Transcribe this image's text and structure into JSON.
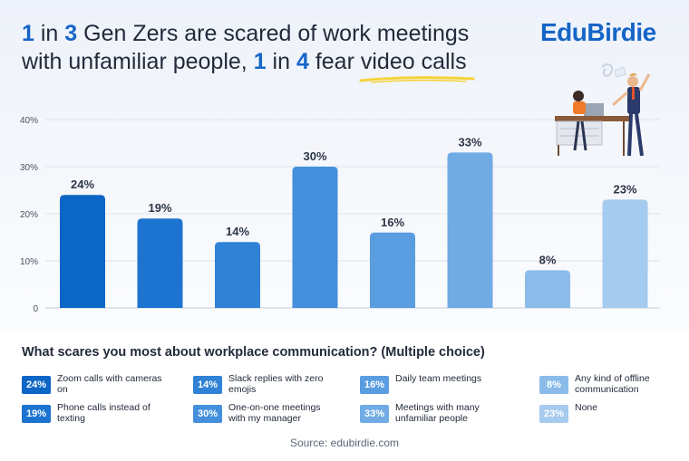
{
  "header": {
    "title_parts": [
      "1",
      " in ",
      "3",
      " Gen Zers are scared of work meetings",
      "with unfamiliar people, ",
      "1",
      " in ",
      "4",
      " fear ",
      "video calls"
    ],
    "brand": "EduBirdie"
  },
  "colors": {
    "accent": "#1565c8",
    "highlight": "#f5d33a",
    "series": [
      "#0b66c6",
      "#1c74d0",
      "#2f82d6",
      "#4590dc",
      "#5a9de0",
      "#70abe4",
      "#8bbce9",
      "#a5cbee"
    ]
  },
  "chart_data": {
    "type": "bar",
    "categories": [
      "Zoom calls with cameras on",
      "Phone calls instead of texting",
      "Slack replies with zero emojis",
      "One-on-one meetings with my manager",
      "Daily team meetings",
      "Meetings with many unfamiliar people",
      "Any kind of offline communication",
      "None"
    ],
    "values": [
      24,
      19,
      14,
      30,
      16,
      33,
      8,
      23
    ],
    "value_labels": [
      "24%",
      "19%",
      "14%",
      "30%",
      "16%",
      "33%",
      "8%",
      "23%"
    ],
    "y_ticks": [
      "0",
      "10%",
      "20%",
      "30%",
      "40%"
    ],
    "ylim": [
      0,
      40
    ],
    "grid": true,
    "title": "",
    "xlabel": "",
    "ylabel": ""
  },
  "legend": {
    "question": "What scares you most about workplace communication? (Multiple choice)",
    "items": [
      {
        "pct": "24%",
        "label": "Zoom calls with cameras on"
      },
      {
        "pct": "19%",
        "label": "Phone calls instead of texting"
      },
      {
        "pct": "14%",
        "label": "Slack replies with zero emojis"
      },
      {
        "pct": "30%",
        "label": "One-on-one meetings with my manager"
      },
      {
        "pct": "16%",
        "label": "Daily team meetings"
      },
      {
        "pct": "33%",
        "label": "Meetings with many unfamiliar people"
      },
      {
        "pct": "8%",
        "label": "Any kind of offline communication"
      },
      {
        "pct": "23%",
        "label": "None"
      }
    ]
  },
  "footer": {
    "source": "Source: edubirdie.com"
  }
}
